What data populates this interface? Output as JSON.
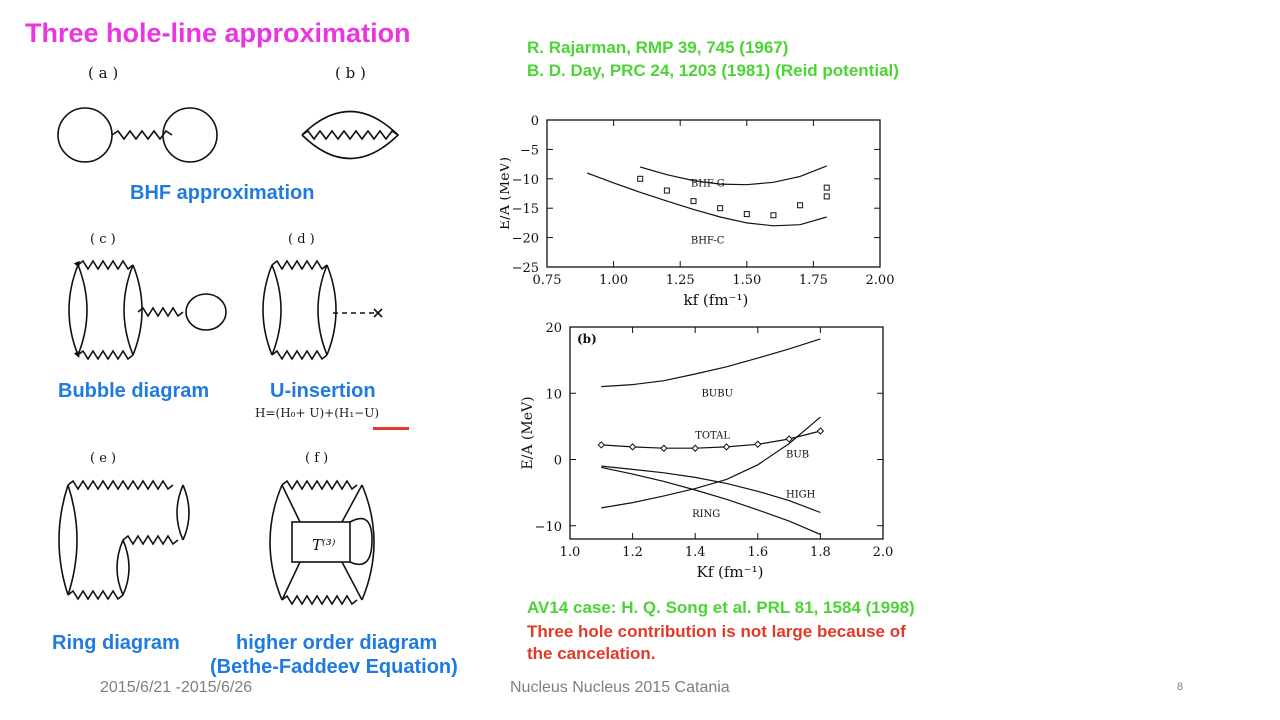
{
  "slide": {
    "title": "Three hole-line approximation",
    "references": [
      "R. Rajarman, RMP 39,  745 (1967)",
      "B. D. Day, PRC 24, 1203 (1981) (Reid potential)"
    ],
    "diagram_labels": {
      "a": "( a )",
      "b": "( b )",
      "c": "( c )",
      "d": "( d )",
      "e": "( e )",
      "f": "( f )",
      "t3": "T⁽³⁾"
    },
    "captions": {
      "bhf": "BHF approximation",
      "bubble": "Bubble diagram",
      "uinsertion": "U-insertion",
      "formula": "H=(H₀+ U)+(H₁−U)",
      "ring": "Ring diagram",
      "higher1": "higher order diagram",
      "higher2": "(Bethe-Faddeev Equation)"
    },
    "av14": "AV14 case: H. Q. Song et al. PRL 81, 1584 (1998)",
    "note1": "Three hole contribution is not large because of",
    "note2": "the cancelation.",
    "footer": {
      "date": "2015/6/21 -2015/6/26",
      "conf": "Nucleus Nucleus 2015 Catania",
      "page": "8"
    }
  },
  "chart_data": [
    {
      "type": "line",
      "xlabel": "kf (fm⁻¹)",
      "ylabel": "E/A (MeV)",
      "xlim": [
        0.75,
        2.0
      ],
      "ylim": [
        -25,
        0
      ],
      "x_ticks": [
        "0.75",
        "1.00",
        "1.25",
        "1.50",
        "1.75",
        "2.00"
      ],
      "y_ticks": [
        "0",
        "−5",
        "−10",
        "−15",
        "−20",
        "−25"
      ],
      "series": [
        {
          "name": "BHF-G",
          "x": [
            1.1,
            1.2,
            1.3,
            1.4,
            1.5,
            1.6,
            1.7,
            1.8
          ],
          "y": [
            -8.0,
            -9.3,
            -10.3,
            -10.9,
            -11.0,
            -10.6,
            -9.6,
            -7.8
          ]
        },
        {
          "name": "BHF-C",
          "x": [
            0.9,
            1.0,
            1.1,
            1.2,
            1.3,
            1.4,
            1.5,
            1.6,
            1.7,
            1.8
          ],
          "y": [
            -9.0,
            -10.7,
            -12.3,
            -13.8,
            -15.2,
            -16.5,
            -17.5,
            -18.0,
            -17.8,
            -16.5
          ]
        }
      ],
      "points": [
        {
          "x": 1.1,
          "y": -10.0
        },
        {
          "x": 1.2,
          "y": -12.0
        },
        {
          "x": 1.3,
          "y": -13.8
        },
        {
          "x": 1.4,
          "y": -15.0
        },
        {
          "x": 1.5,
          "y": -16.0
        },
        {
          "x": 1.6,
          "y": -16.2
        },
        {
          "x": 1.7,
          "y": -14.5
        },
        {
          "x": 1.8,
          "y": -11.5
        },
        {
          "x": 1.8,
          "y": -13.0
        }
      ]
    },
    {
      "type": "line",
      "panel_label": "(b)",
      "xlabel": "Kf (fm⁻¹)",
      "ylabel": "E/A (MeV)",
      "xlim": [
        1.0,
        2.0
      ],
      "ylim": [
        -12,
        20
      ],
      "x_ticks": [
        "1.0",
        "1.2",
        "1.4",
        "1.6",
        "1.8",
        "2.0"
      ],
      "y_ticks": [
        "20",
        "10",
        "0",
        "−10"
      ],
      "series": [
        {
          "name": "BUBU",
          "x": [
            1.1,
            1.2,
            1.3,
            1.4,
            1.5,
            1.6,
            1.7,
            1.8
          ],
          "y": [
            11.0,
            11.3,
            11.9,
            12.9,
            14.0,
            15.3,
            16.7,
            18.2
          ]
        },
        {
          "name": "TOTAL",
          "x": [
            1.1,
            1.2,
            1.3,
            1.4,
            1.5,
            1.6,
            1.7,
            1.8
          ],
          "y": [
            2.2,
            1.9,
            1.7,
            1.7,
            1.9,
            2.3,
            3.1,
            4.3
          ],
          "markers": true
        },
        {
          "name": "BUB",
          "x": [
            1.1,
            1.2,
            1.3,
            1.4,
            1.5,
            1.6,
            1.7,
            1.8
          ],
          "y": [
            -7.3,
            -6.5,
            -5.5,
            -4.4,
            -3.0,
            -0.8,
            2.4,
            6.4
          ]
        },
        {
          "name": "HIGH",
          "x": [
            1.1,
            1.2,
            1.3,
            1.4,
            1.5,
            1.6,
            1.7,
            1.8
          ],
          "y": [
            -1.0,
            -1.5,
            -2.0,
            -2.7,
            -3.6,
            -4.8,
            -6.2,
            -8.0
          ]
        },
        {
          "name": "RING",
          "x": [
            1.1,
            1.2,
            1.3,
            1.4,
            1.5,
            1.6,
            1.7,
            1.8
          ],
          "y": [
            -1.2,
            -2.2,
            -3.3,
            -4.6,
            -6.0,
            -7.6,
            -9.3,
            -11.3
          ]
        }
      ]
    }
  ]
}
